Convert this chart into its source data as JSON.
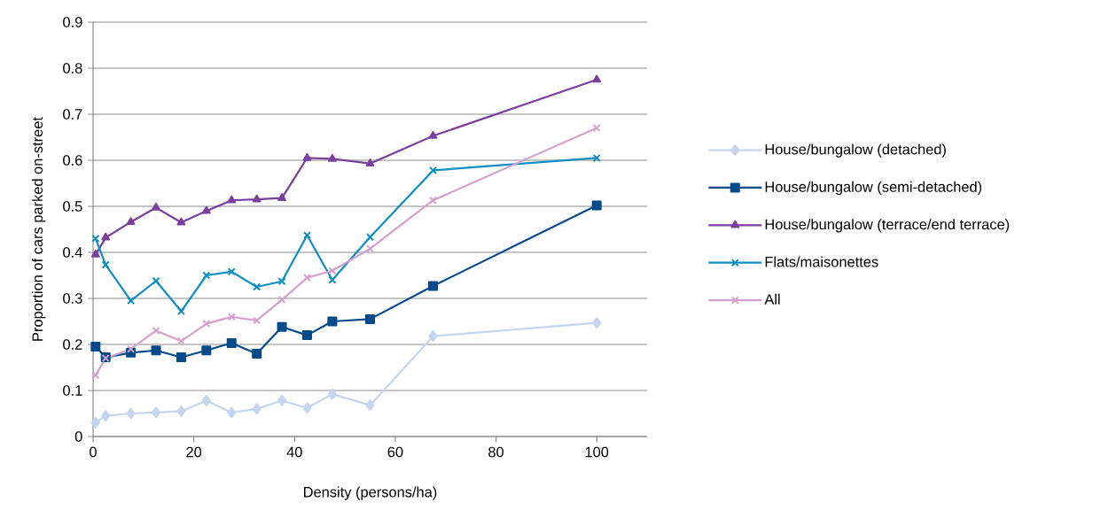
{
  "chart_data": {
    "type": "line",
    "xlabel": "Density (persons/ha)",
    "ylabel": "Proportion of cars parked on-street",
    "x": [
      0.5,
      2.5,
      7.5,
      12.5,
      17.5,
      22.5,
      27.5,
      32.5,
      37.5,
      42.5,
      47.5,
      55,
      67.5,
      100
    ],
    "series": [
      {
        "name": "House/bungalow (detached)",
        "color": "#c5d5ee",
        "marker": "diamond",
        "values": [
          0.03,
          0.045,
          0.05,
          0.052,
          0.055,
          0.078,
          0.052,
          0.06,
          0.078,
          0.062,
          0.092,
          0.068,
          0.218,
          0.247
        ]
      },
      {
        "name": "House/bungalow (semi-detached)",
        "color": "#034a8a",
        "marker": "square",
        "values": [
          0.195,
          0.172,
          0.182,
          0.187,
          0.172,
          0.187,
          0.203,
          0.18,
          0.238,
          0.22,
          0.25,
          0.255,
          0.327,
          0.502
        ]
      },
      {
        "name": "House/bungalow (terrace/end terrace)",
        "color": "#7b3f9d",
        "marker": "triangle",
        "values": [
          0.395,
          0.432,
          0.466,
          0.497,
          0.465,
          0.49,
          0.513,
          0.515,
          0.518,
          0.605,
          0.603,
          0.593,
          0.653,
          0.775
        ]
      },
      {
        "name": "Flats/maisonettes",
        "color": "#0e8fc4",
        "marker": "cross",
        "values": [
          0.43,
          0.373,
          0.295,
          0.338,
          0.272,
          0.35,
          0.358,
          0.325,
          0.337,
          0.437,
          0.34,
          0.433,
          0.578,
          0.605
        ]
      },
      {
        "name": "All",
        "color": "#d4a0cc",
        "marker": "cross",
        "values": [
          0.133,
          0.17,
          0.19,
          0.23,
          0.207,
          0.245,
          0.26,
          0.252,
          0.297,
          0.345,
          0.36,
          0.408,
          0.513,
          0.67
        ]
      }
    ],
    "xlim": [
      0,
      110
    ],
    "xticks": [
      0,
      20,
      40,
      60,
      80,
      100
    ],
    "ylim": [
      0,
      0.9
    ],
    "yticks": [
      0,
      0.1,
      0.2,
      0.3,
      0.4,
      0.5,
      0.6,
      0.7,
      0.8,
      0.9
    ],
    "grid": "y",
    "legend": "right",
    "line_style": "solid"
  }
}
